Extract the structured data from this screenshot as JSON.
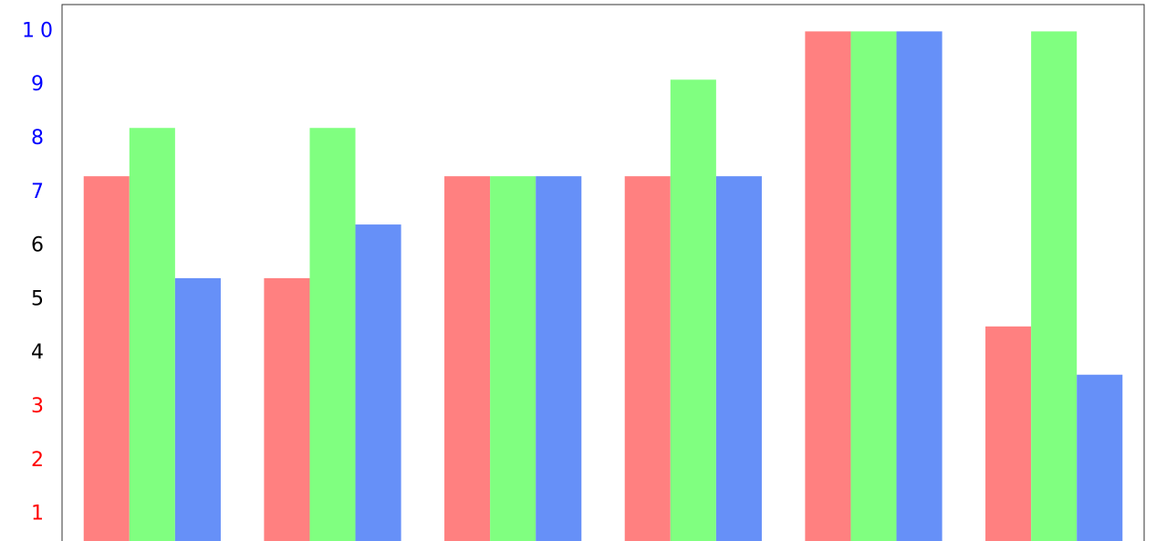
{
  "chart_data": {
    "type": "bar",
    "categories": [
      null,
      null,
      null,
      null,
      null,
      null
    ],
    "series": [
      {
        "color": "#ff8080",
        "values": [
          7.3,
          5.4,
          7.3,
          7.3,
          10,
          4.5
        ]
      },
      {
        "color": "#80ff80",
        "values": [
          8.2,
          8.2,
          7.3,
          9.1,
          10,
          10
        ]
      },
      {
        "color": "#6690f8",
        "values": [
          5.4,
          6.4,
          7.3,
          7.3,
          10,
          3.6
        ]
      }
    ],
    "ylim": [
      0.5,
      10.5
    ],
    "yticks": [
      1,
      2,
      3,
      4,
      5,
      6,
      7,
      8,
      9,
      10
    ],
    "ytick_colors": [
      "#ff0000",
      "#ff0000",
      "#ff0000",
      "#000000",
      "#000000",
      "#000000",
      "#0000ff",
      "#0000ff",
      "#0000ff",
      "#0000ff"
    ],
    "grid": false
  }
}
